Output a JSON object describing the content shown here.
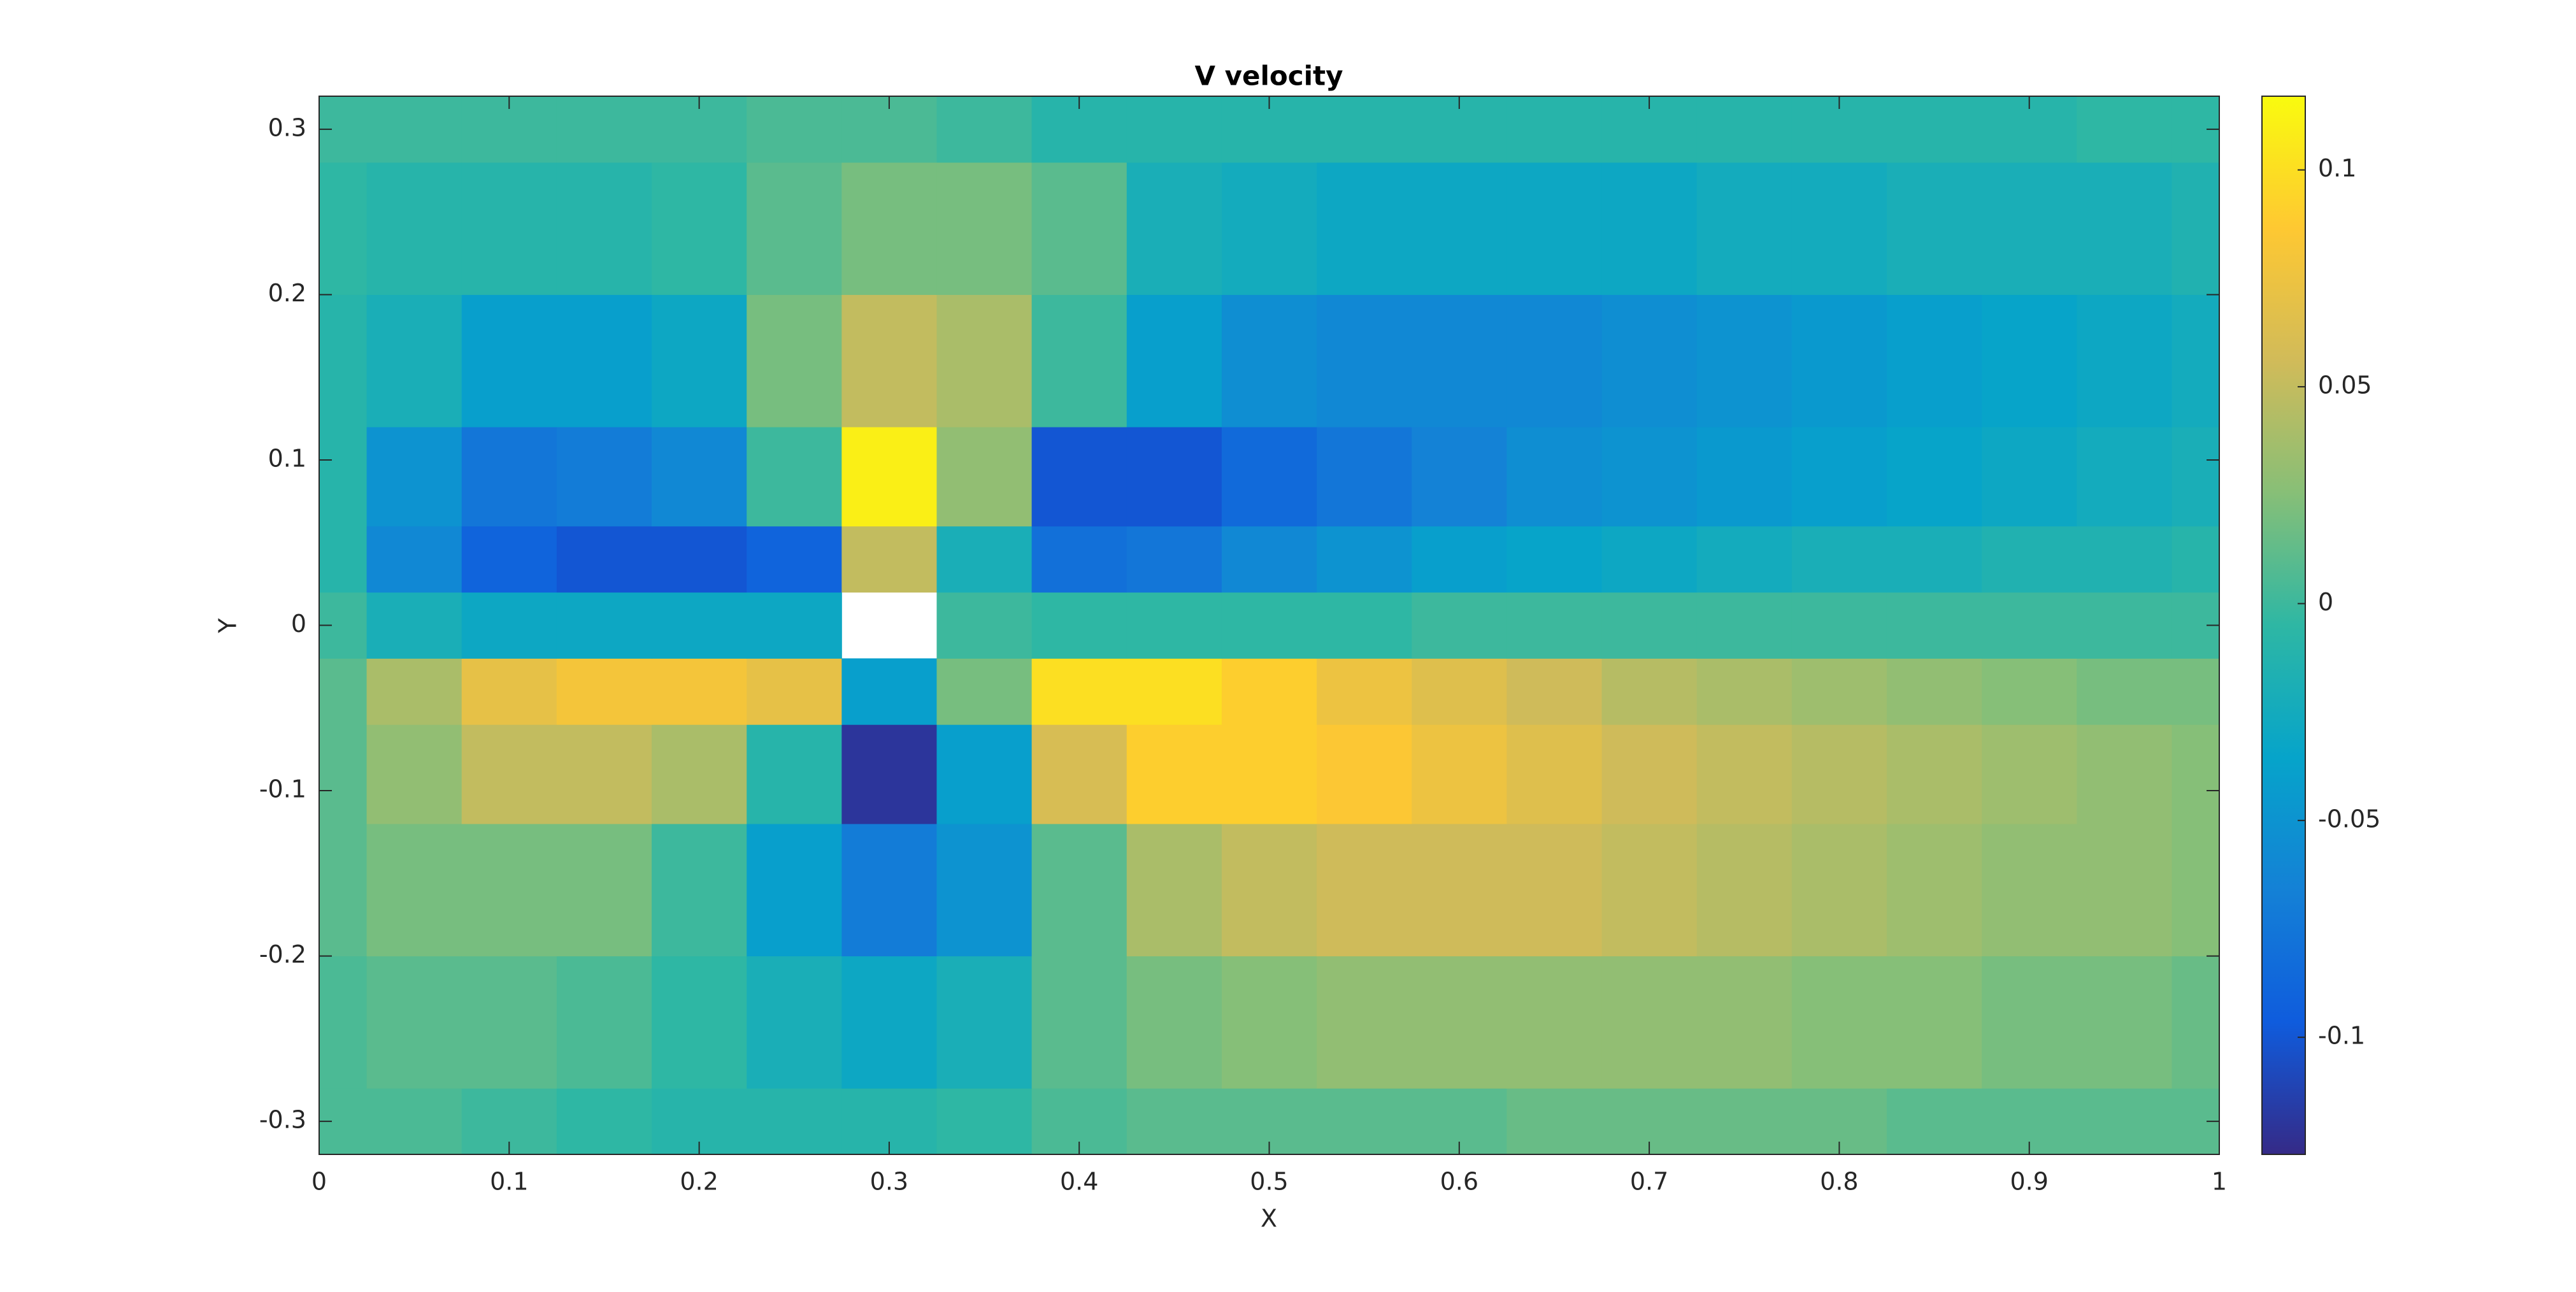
{
  "chart_data": {
    "type": "contour",
    "title": "V velocity",
    "x_label": "X",
    "y_label": "Y",
    "colormap": "parula",
    "clim": [
      -0.127,
      0.117
    ],
    "cticks": [
      -0.1,
      -0.05,
      0,
      0.05,
      0.1
    ],
    "xlim": [
      0,
      1
    ],
    "xticks": [
      0,
      0.1,
      0.2,
      0.3,
      0.4,
      0.5,
      0.6,
      0.7,
      0.8,
      0.9,
      1
    ],
    "ylim": [
      -0.32,
      0.32
    ],
    "yticks": [
      -0.3,
      -0.2,
      -0.1,
      0,
      0.1,
      0.2,
      0.3
    ],
    "x": [
      0,
      0.05,
      0.1,
      0.15,
      0.2,
      0.25,
      0.3,
      0.35,
      0.4,
      0.45,
      0.5,
      0.55,
      0.6,
      0.65,
      0.7,
      0.75,
      0.8,
      0.85,
      0.9,
      0.95,
      1
    ],
    "y": [
      -0.32,
      -0.24,
      -0.16,
      -0.08,
      -0.04,
      0,
      0.04,
      0.08,
      0.16,
      0.24,
      0.32
    ],
    "z": [
      [
        0.005,
        0.005,
        0,
        -0.005,
        -0.01,
        -0.01,
        -0.01,
        -0.005,
        0.005,
        0.01,
        0.01,
        0.01,
        0.01,
        0.015,
        0.015,
        0.015,
        0.015,
        0.01,
        0.01,
        0.01,
        0.01
      ],
      [
        0.005,
        0.01,
        0.01,
        0.005,
        -0.005,
        -0.02,
        -0.03,
        -0.02,
        0.01,
        0.02,
        0.025,
        0.03,
        0.03,
        0.03,
        0.03,
        0.03,
        0.025,
        0.025,
        0.02,
        0.02,
        0.015
      ],
      [
        0.01,
        0.02,
        0.02,
        0.02,
        0,
        -0.04,
        -0.07,
        -0.05,
        0.01,
        0.04,
        0.05,
        0.055,
        0.055,
        0.055,
        0.05,
        0.045,
        0.04,
        0.035,
        0.03,
        0.03,
        0.025
      ],
      [
        0.01,
        0.03,
        0.05,
        0.05,
        0.04,
        -0.01,
        -0.12,
        -0.04,
        0.06,
        0.09,
        0.09,
        0.085,
        0.075,
        0.065,
        0.055,
        0.05,
        0.045,
        0.04,
        0.035,
        0.03,
        0.025
      ],
      [
        0.01,
        0.04,
        0.07,
        0.08,
        0.08,
        0.07,
        -0.04,
        0.02,
        0.1,
        0.1,
        0.09,
        0.075,
        0.065,
        0.055,
        0.045,
        0.04,
        0.035,
        0.03,
        0.025,
        0.02,
        0.02
      ],
      [
        0,
        -0.02,
        -0.03,
        -0.03,
        -0.03,
        -0.03,
        null,
        0,
        -0.005,
        -0.005,
        -0.005,
        -0.005,
        0,
        0,
        0,
        0,
        0,
        0,
        0,
        0,
        0
      ],
      [
        -0.01,
        -0.06,
        -0.09,
        -0.1,
        -0.1,
        -0.09,
        0.05,
        -0.02,
        -0.08,
        -0.075,
        -0.06,
        -0.05,
        -0.04,
        -0.035,
        -0.03,
        -0.025,
        -0.02,
        -0.02,
        -0.015,
        -0.015,
        -0.01
      ],
      [
        -0.01,
        -0.05,
        -0.075,
        -0.07,
        -0.06,
        0,
        0.11,
        0.03,
        -0.1,
        -0.1,
        -0.085,
        -0.075,
        -0.065,
        -0.055,
        -0.05,
        -0.045,
        -0.04,
        -0.035,
        -0.03,
        -0.025,
        -0.02
      ],
      [
        -0.01,
        -0.02,
        -0.04,
        -0.04,
        -0.03,
        0.02,
        0.05,
        0.04,
        0,
        -0.04,
        -0.055,
        -0.06,
        -0.06,
        -0.06,
        -0.055,
        -0.05,
        -0.045,
        -0.04,
        -0.035,
        -0.03,
        -0.025
      ],
      [
        -0.005,
        -0.01,
        -0.01,
        -0.01,
        -0.005,
        0.01,
        0.02,
        0.02,
        0.01,
        -0.02,
        -0.025,
        -0.03,
        -0.03,
        -0.03,
        -0.03,
        -0.025,
        -0.025,
        -0.02,
        -0.02,
        -0.02,
        -0.015
      ],
      [
        0,
        0,
        0,
        0,
        0,
        0.005,
        0.005,
        0,
        -0.01,
        -0.01,
        -0.01,
        -0.01,
        -0.01,
        -0.01,
        -0.01,
        -0.01,
        -0.01,
        -0.01,
        -0.01,
        -0.005,
        -0.005
      ]
    ]
  }
}
